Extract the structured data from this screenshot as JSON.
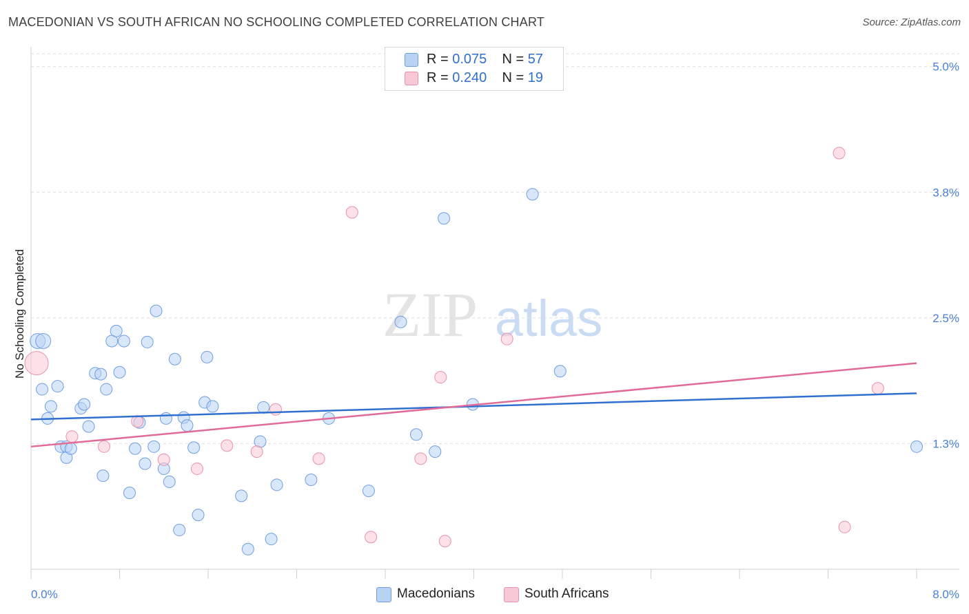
{
  "title": "MACEDONIAN VS SOUTH AFRICAN NO SCHOOLING COMPLETED CORRELATION CHART",
  "source": "Source: ZipAtlas.com",
  "watermark": {
    "zip": "ZIP",
    "atlas": "atlas"
  },
  "colors": {
    "blue_fill": "#b9d3f5",
    "blue_stroke": "#6f9ee0",
    "blue_line": "#2f6fd0",
    "pink_fill": "#f9c8d6",
    "pink_stroke": "#e891ab",
    "pink_line": "#e26a98",
    "tick_text": "#4a7fd4",
    "grid": "#dddddd"
  },
  "legend": {
    "rows": [
      {
        "r_label": "R =",
        "r_value": "0.075",
        "n_label": "N =",
        "n_value": "57"
      },
      {
        "r_label": "R =",
        "r_value": "0.240",
        "n_label": "N =",
        "n_value": "19"
      }
    ]
  },
  "bottom_legend": {
    "macedonians": "Macedonians",
    "south_africans": "South Africans"
  },
  "chart_data": {
    "type": "scatter",
    "xlabel": "",
    "ylabel": "No Schooling Completed",
    "xlim": [
      0,
      8.0
    ],
    "ylim": [
      0,
      5.0
    ],
    "x_tick_labels": [
      "0.0%",
      "8.0%"
    ],
    "y_ticks": [
      {
        "value": 1.25,
        "label": "1.3%"
      },
      {
        "value": 2.5,
        "label": "2.5%"
      },
      {
        "value": 3.75,
        "label": "3.8%"
      },
      {
        "value": 5.0,
        "label": "5.0%"
      }
    ],
    "grid": true,
    "legend_position": "top-center",
    "series": [
      {
        "name": "Macedonians",
        "trend": {
          "x": [
            0,
            8.0
          ],
          "y": [
            1.49,
            1.75
          ]
        },
        "points": [
          [
            0.06,
            2.27
          ],
          [
            0.11,
            2.27
          ],
          [
            0.1,
            1.79
          ],
          [
            0.18,
            1.62
          ],
          [
            0.15,
            1.5
          ],
          [
            0.24,
            1.82
          ],
          [
            0.27,
            1.22
          ],
          [
            0.32,
            1.22
          ],
          [
            0.32,
            1.11
          ],
          [
            0.36,
            1.2
          ],
          [
            0.45,
            1.6
          ],
          [
            0.48,
            1.64
          ],
          [
            0.52,
            1.42
          ],
          [
            0.58,
            1.95
          ],
          [
            0.63,
            1.94
          ],
          [
            0.68,
            1.79
          ],
          [
            0.65,
            0.93
          ],
          [
            0.73,
            2.27
          ],
          [
            0.77,
            2.37
          ],
          [
            0.8,
            1.96
          ],
          [
            0.84,
            2.27
          ],
          [
            0.89,
            0.76
          ],
          [
            0.94,
            1.2
          ],
          [
            0.98,
            1.46
          ],
          [
            1.03,
            1.05
          ],
          [
            1.05,
            2.26
          ],
          [
            1.11,
            1.22
          ],
          [
            1.13,
            2.57
          ],
          [
            1.2,
            1.0
          ],
          [
            1.22,
            1.5
          ],
          [
            1.25,
            0.87
          ],
          [
            1.3,
            2.09
          ],
          [
            1.34,
            0.39
          ],
          [
            1.38,
            1.51
          ],
          [
            1.41,
            1.43
          ],
          [
            1.47,
            1.21
          ],
          [
            1.51,
            0.54
          ],
          [
            1.57,
            1.66
          ],
          [
            1.59,
            2.11
          ],
          [
            1.64,
            1.62
          ],
          [
            1.9,
            0.73
          ],
          [
            1.96,
            0.2
          ],
          [
            2.07,
            1.27
          ],
          [
            2.1,
            1.61
          ],
          [
            2.17,
            0.3
          ],
          [
            2.22,
            0.84
          ],
          [
            2.53,
            0.89
          ],
          [
            2.69,
            1.5
          ],
          [
            3.05,
            0.78
          ],
          [
            3.34,
            2.46
          ],
          [
            3.48,
            1.34
          ],
          [
            3.65,
            1.17
          ],
          [
            3.73,
            3.49
          ],
          [
            3.99,
            1.64
          ],
          [
            4.53,
            3.73
          ],
          [
            4.78,
            1.97
          ],
          [
            8.0,
            1.22
          ]
        ]
      },
      {
        "name": "South Africans",
        "trend": {
          "x": [
            0,
            8.0
          ],
          "y": [
            1.22,
            2.05
          ]
        },
        "points": [
          [
            0.05,
            2.05
          ],
          [
            0.37,
            1.32
          ],
          [
            0.66,
            1.22
          ],
          [
            0.96,
            1.47
          ],
          [
            1.2,
            1.09
          ],
          [
            1.5,
            1.0
          ],
          [
            1.77,
            1.23
          ],
          [
            2.04,
            1.17
          ],
          [
            2.21,
            1.59
          ],
          [
            2.6,
            1.1
          ],
          [
            2.9,
            3.55
          ],
          [
            3.07,
            0.32
          ],
          [
            3.52,
            1.1
          ],
          [
            3.7,
            1.91
          ],
          [
            3.74,
            0.28
          ],
          [
            4.3,
            2.29
          ],
          [
            7.3,
            4.14
          ],
          [
            7.35,
            0.42
          ],
          [
            7.65,
            1.8
          ]
        ]
      }
    ]
  }
}
